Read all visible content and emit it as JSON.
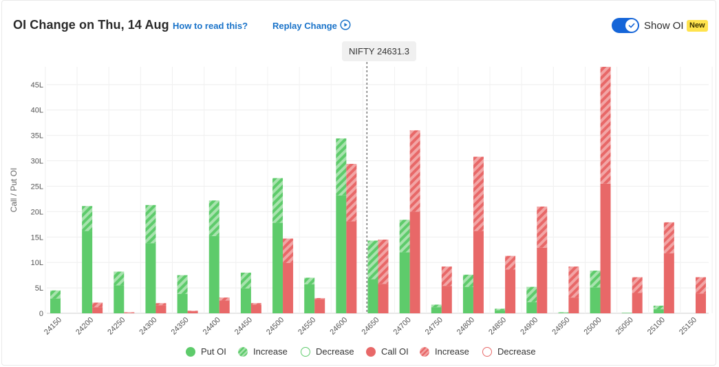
{
  "header": {
    "title": "OI Change on Thu, 14 Aug",
    "how_to_link": "How to read this?",
    "replay_link": "Replay Change",
    "toggle_label": "Show OI",
    "toggle_on": true,
    "new_badge": "New"
  },
  "spot_label": "NIFTY 24631.3",
  "legend": {
    "put_oi": "Put OI",
    "put_increase": "Increase",
    "put_decrease": "Decrease",
    "call_oi": "Call OI",
    "call_increase": "Increase",
    "call_decrease": "Decrease"
  },
  "colors": {
    "put": "#5ecb6b",
    "put_light": "#a8e3ae",
    "call": "#e86868",
    "call_light": "#f2a5a5",
    "link": "#1a73c9",
    "toggle": "#1565d8",
    "badge": "#ffe34d"
  },
  "chart_data": {
    "type": "bar",
    "ylabel": "Call / Put OI",
    "y_unit": "L",
    "ylim": [
      0,
      48.5
    ],
    "yticks": [
      "0",
      "5L",
      "10L",
      "15L",
      "20L",
      "25L",
      "30L",
      "35L",
      "40L",
      "45L"
    ],
    "ytick_values": [
      0,
      5,
      10,
      15,
      20,
      25,
      30,
      35,
      40,
      45
    ],
    "grid": true,
    "spot": 24631.3,
    "categories": [
      "24150",
      "24200",
      "24250",
      "24300",
      "24350",
      "24400",
      "24450",
      "24500",
      "24550",
      "24600",
      "24650",
      "24700",
      "24750",
      "24800",
      "24850",
      "24900",
      "24950",
      "25000",
      "25050",
      "25100",
      "25150"
    ],
    "series": [
      {
        "name": "Put OI",
        "base": [
          2.9,
          16.2,
          5.5,
          13.8,
          3.8,
          15.2,
          4.9,
          17.8,
          5.7,
          23.2,
          6.7,
          12.0,
          1.2,
          5.2,
          0.6,
          2.2,
          0.1,
          5.1,
          0.1,
          0.8,
          0.0
        ],
        "increase": [
          1.6,
          4.9,
          2.7,
          7.5,
          3.7,
          7.0,
          3.1,
          8.8,
          1.3,
          11.2,
          7.6,
          6.4,
          0.5,
          2.4,
          0.3,
          3.0,
          0.1,
          3.3,
          0.0,
          0.7,
          0.0
        ]
      },
      {
        "name": "Call OI",
        "base": [
          0.0,
          1.2,
          0.1,
          1.6,
          0.4,
          2.5,
          1.7,
          9.9,
          2.8,
          18.1,
          5.8,
          20.0,
          5.4,
          16.2,
          8.6,
          12.9,
          3.1,
          25.5,
          4.0,
          11.8,
          3.9
        ],
        "increase": [
          0.0,
          0.9,
          0.1,
          0.4,
          0.1,
          0.6,
          0.3,
          4.8,
          0.2,
          11.3,
          8.7,
          16.0,
          3.8,
          14.6,
          2.7,
          8.1,
          6.1,
          23.0,
          3.1,
          6.1,
          3.2
        ]
      }
    ]
  }
}
